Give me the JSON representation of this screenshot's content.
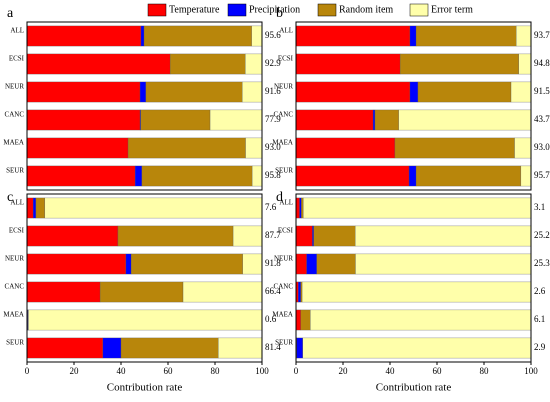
{
  "chart_data": [
    {
      "type": "bar",
      "label": "a",
      "categories": [
        "ALL",
        "ECSI",
        "NEUR",
        "CANC",
        "MAEA",
        "SEUR"
      ],
      "series": [
        {
          "name": "Temperature",
          "color": "#ff0000",
          "values": [
            48.5,
            60.9,
            48.1,
            48.1,
            43.0,
            46.0
          ]
        },
        {
          "name": "Precipitation",
          "color": "#0000ff",
          "values": [
            1.3,
            0,
            2.5,
            0.3,
            0,
            2.9
          ]
        },
        {
          "name": "Random item",
          "color": "#b8860b",
          "values": [
            45.8,
            32.0,
            41.0,
            29.5,
            50.0,
            46.9
          ]
        },
        {
          "name": "Error term",
          "color": "#ffffaa",
          "values": [
            4.4,
            7.1,
            8.4,
            22.1,
            7.0,
            4.2
          ]
        }
      ],
      "totals": [
        "95.6",
        "92.9",
        "91.6",
        "77.9",
        "93.0",
        "95.8"
      ],
      "xlim": [
        0,
        100
      ]
    },
    {
      "type": "bar",
      "label": "b",
      "categories": [
        "ALL",
        "ECSI",
        "NEUR",
        "CANC",
        "MAEA",
        "SEUR"
      ],
      "series": [
        {
          "color": "#ff0000",
          "values": [
            48.5,
            44.3,
            48.5,
            32.8,
            42.1,
            48.1
          ]
        },
        {
          "color": "#0000ff",
          "values": [
            2.6,
            0,
            3.4,
            0.8,
            0,
            3.0
          ]
        },
        {
          "color": "#b8860b",
          "values": [
            42.6,
            50.5,
            39.6,
            10.1,
            50.9,
            44.6
          ]
        },
        {
          "color": "#ffffaa",
          "values": [
            6.3,
            5.2,
            8.5,
            56.3,
            7.0,
            4.3
          ]
        }
      ],
      "totals": [
        "93.7",
        "94.8",
        "91.5",
        "43.7",
        "93.0",
        "95.7"
      ],
      "xlim": [
        0,
        100
      ]
    },
    {
      "type": "bar",
      "label": "c",
      "categories": [
        "ALL",
        "ECSI",
        "NEUR",
        "CANC",
        "MAEA",
        "SEUR"
      ],
      "series": [
        {
          "color": "#ff0000",
          "values": [
            2.6,
            38.7,
            42.1,
            31.1,
            0.3,
            32.3
          ]
        },
        {
          "color": "#0000ff",
          "values": [
            1.2,
            0,
            2.2,
            0,
            0.3,
            7.7
          ]
        },
        {
          "color": "#b8860b",
          "values": [
            3.8,
            49.0,
            47.5,
            35.3,
            0,
            41.4
          ]
        },
        {
          "color": "#ffffaa",
          "values": [
            92.4,
            12.3,
            8.2,
            33.6,
            99.4,
            18.6
          ]
        }
      ],
      "totals": [
        "7.6",
        "87.7",
        "91.8",
        "66.4",
        "0.6",
        "81.4"
      ],
      "xlim": [
        0,
        100
      ],
      "xticks": [
        0,
        20,
        40,
        60,
        80,
        100
      ],
      "xlabel": "Contribution rate"
    },
    {
      "type": "bar",
      "label": "d",
      "categories": [
        "ALL",
        "ECSI",
        "NEUR",
        "CANC",
        "MAEA",
        "SEUR"
      ],
      "series": [
        {
          "color": "#ff0000",
          "values": [
            1.5,
            7.0,
            4.5,
            1.0,
            2.0,
            0.3
          ]
        },
        {
          "color": "#0000ff",
          "values": [
            0.8,
            0.5,
            4.3,
            1.0,
            0,
            2.6
          ]
        },
        {
          "color": "#b8860b",
          "values": [
            0.8,
            17.7,
            16.5,
            0.6,
            4.1,
            0
          ]
        },
        {
          "color": "#ffffaa",
          "values": [
            96.9,
            74.8,
            74.7,
            97.4,
            93.9,
            97.1
          ]
        }
      ],
      "totals": [
        "3.1",
        "25.2",
        "25.3",
        "2.6",
        "6.1",
        "2.9"
      ],
      "xlim": [
        0,
        100
      ],
      "xticks": [
        0,
        20,
        40,
        60,
        80,
        100
      ],
      "xlabel": "Contribution rate"
    }
  ]
}
